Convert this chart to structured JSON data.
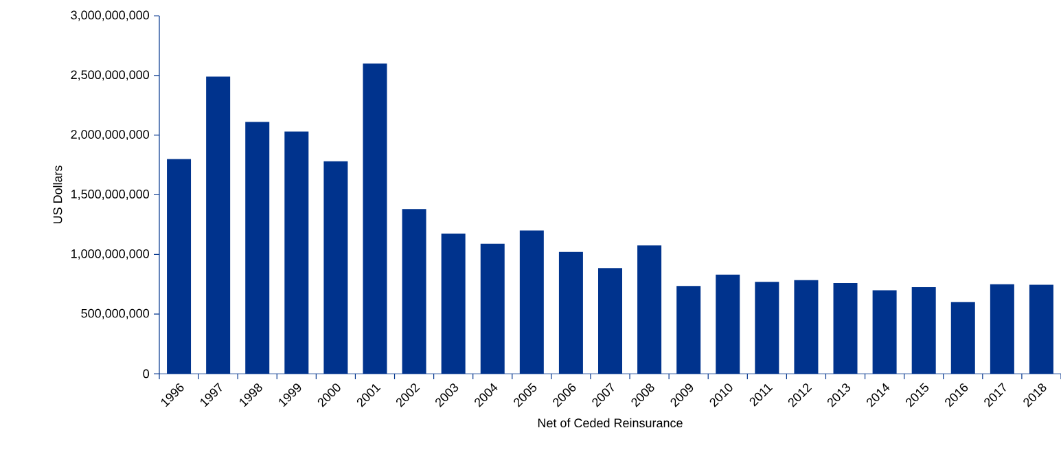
{
  "chart_data": {
    "type": "bar",
    "xlabel": "Net of Ceded Reinsurance",
    "ylabel": "US Dollars",
    "categories": [
      "1996",
      "1997",
      "1998",
      "1999",
      "2000",
      "2001",
      "2002",
      "2003",
      "2004",
      "2005",
      "2006",
      "2007",
      "2008",
      "2009",
      "2010",
      "2011",
      "2012",
      "2013",
      "2014",
      "2015",
      "2016",
      "2017",
      "2018"
    ],
    "values": [
      1800000000,
      2490000000,
      2110000000,
      2030000000,
      1780000000,
      2600000000,
      1380000000,
      1175000000,
      1090000000,
      1200000000,
      1020000000,
      885000000,
      1075000000,
      735000000,
      830000000,
      770000000,
      785000000,
      760000000,
      700000000,
      725000000,
      600000000,
      750000000,
      745000000
    ],
    "color": "#00338d",
    "ylim": [
      0,
      3000000000
    ],
    "yticks": [
      {
        "value": 0,
        "label": "0"
      },
      {
        "value": 500000000,
        "label": "500,000,000"
      },
      {
        "value": 1000000000,
        "label": "1,000,000,000"
      },
      {
        "value": 1500000000,
        "label": "1,500,000,000"
      },
      {
        "value": 2000000000,
        "label": "2,000,000,000"
      },
      {
        "value": 2500000000,
        "label": "2,500,000,000"
      },
      {
        "value": 3000000000,
        "label": "3,000,000,000"
      }
    ]
  }
}
